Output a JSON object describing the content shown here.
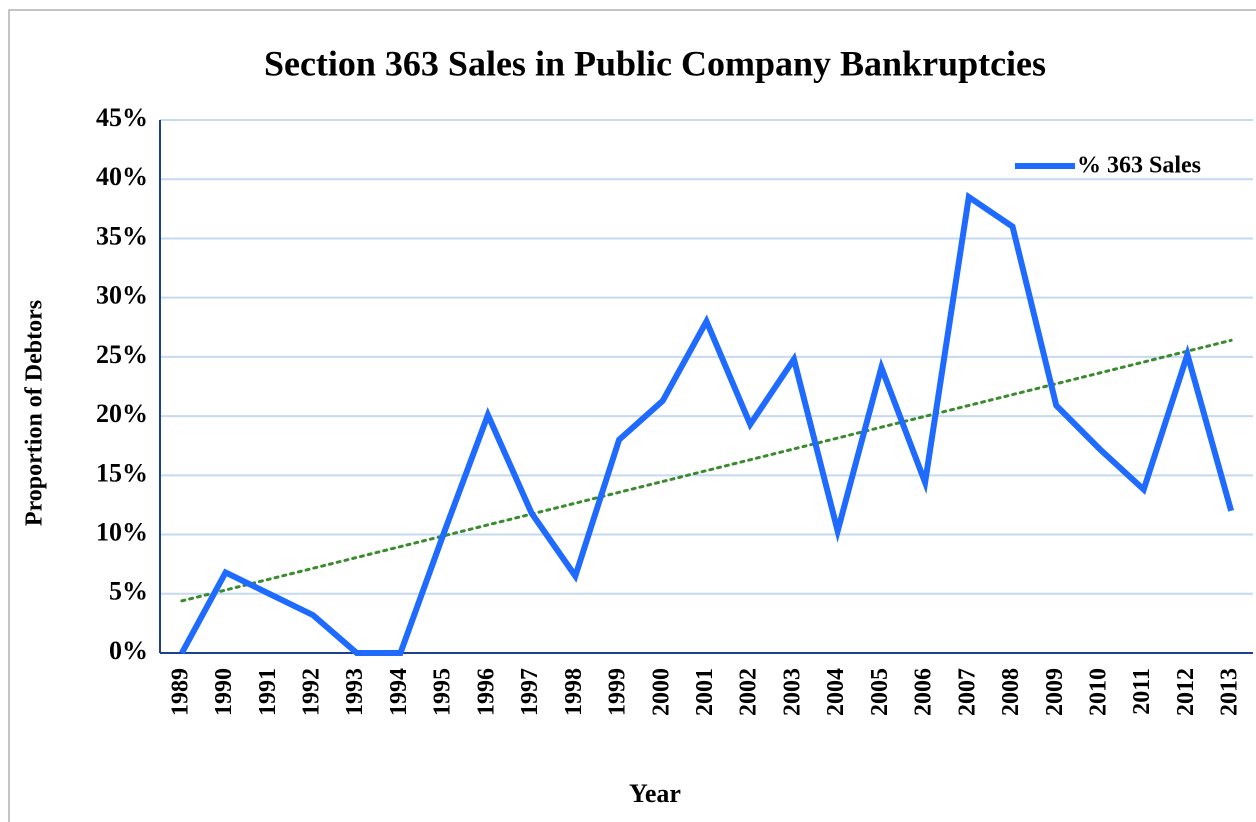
{
  "chart_data": {
    "type": "line",
    "title": "Section 363 Sales in Public Company Bankruptcies",
    "x_label": "Year",
    "y_label": "Proportion of Debtors",
    "categories": [
      "1989",
      "1990",
      "1991",
      "1992",
      "1993",
      "1994",
      "1995",
      "1996",
      "1997",
      "1998",
      "1999",
      "2000",
      "2001",
      "2002",
      "2003",
      "2004",
      "2005",
      "2006",
      "2007",
      "2008",
      "2009",
      "2010",
      "2011",
      "2012",
      "2013"
    ],
    "series": [
      {
        "name": "% 363 Sales",
        "color": "#1f6bff",
        "values": [
          0,
          6.8,
          5.0,
          3.2,
          0,
          0,
          10.2,
          20.1,
          11.8,
          6.5,
          18,
          21.3,
          28,
          19.3,
          24.8,
          10.3,
          24.1,
          14.4,
          38.5,
          36,
          20.9,
          17.2,
          13.8,
          25.2,
          12
        ]
      }
    ],
    "trendline": {
      "color": "#3a8a2e",
      "start": 4.4,
      "end": 26.4
    },
    "ylim": [
      0,
      45
    ],
    "yticks": [
      {
        "value": 0,
        "label": "0%"
      },
      {
        "value": 5,
        "label": "5%"
      },
      {
        "value": 10,
        "label": "10%"
      },
      {
        "value": 15,
        "label": "15%"
      },
      {
        "value": 20,
        "label": "20%"
      },
      {
        "value": 25,
        "label": "25%"
      },
      {
        "value": 30,
        "label": "30%"
      },
      {
        "value": 35,
        "label": "35%"
      },
      {
        "value": 40,
        "label": "40%"
      },
      {
        "value": 45,
        "label": "45%"
      }
    ],
    "grid": true,
    "legend": "upper right"
  }
}
